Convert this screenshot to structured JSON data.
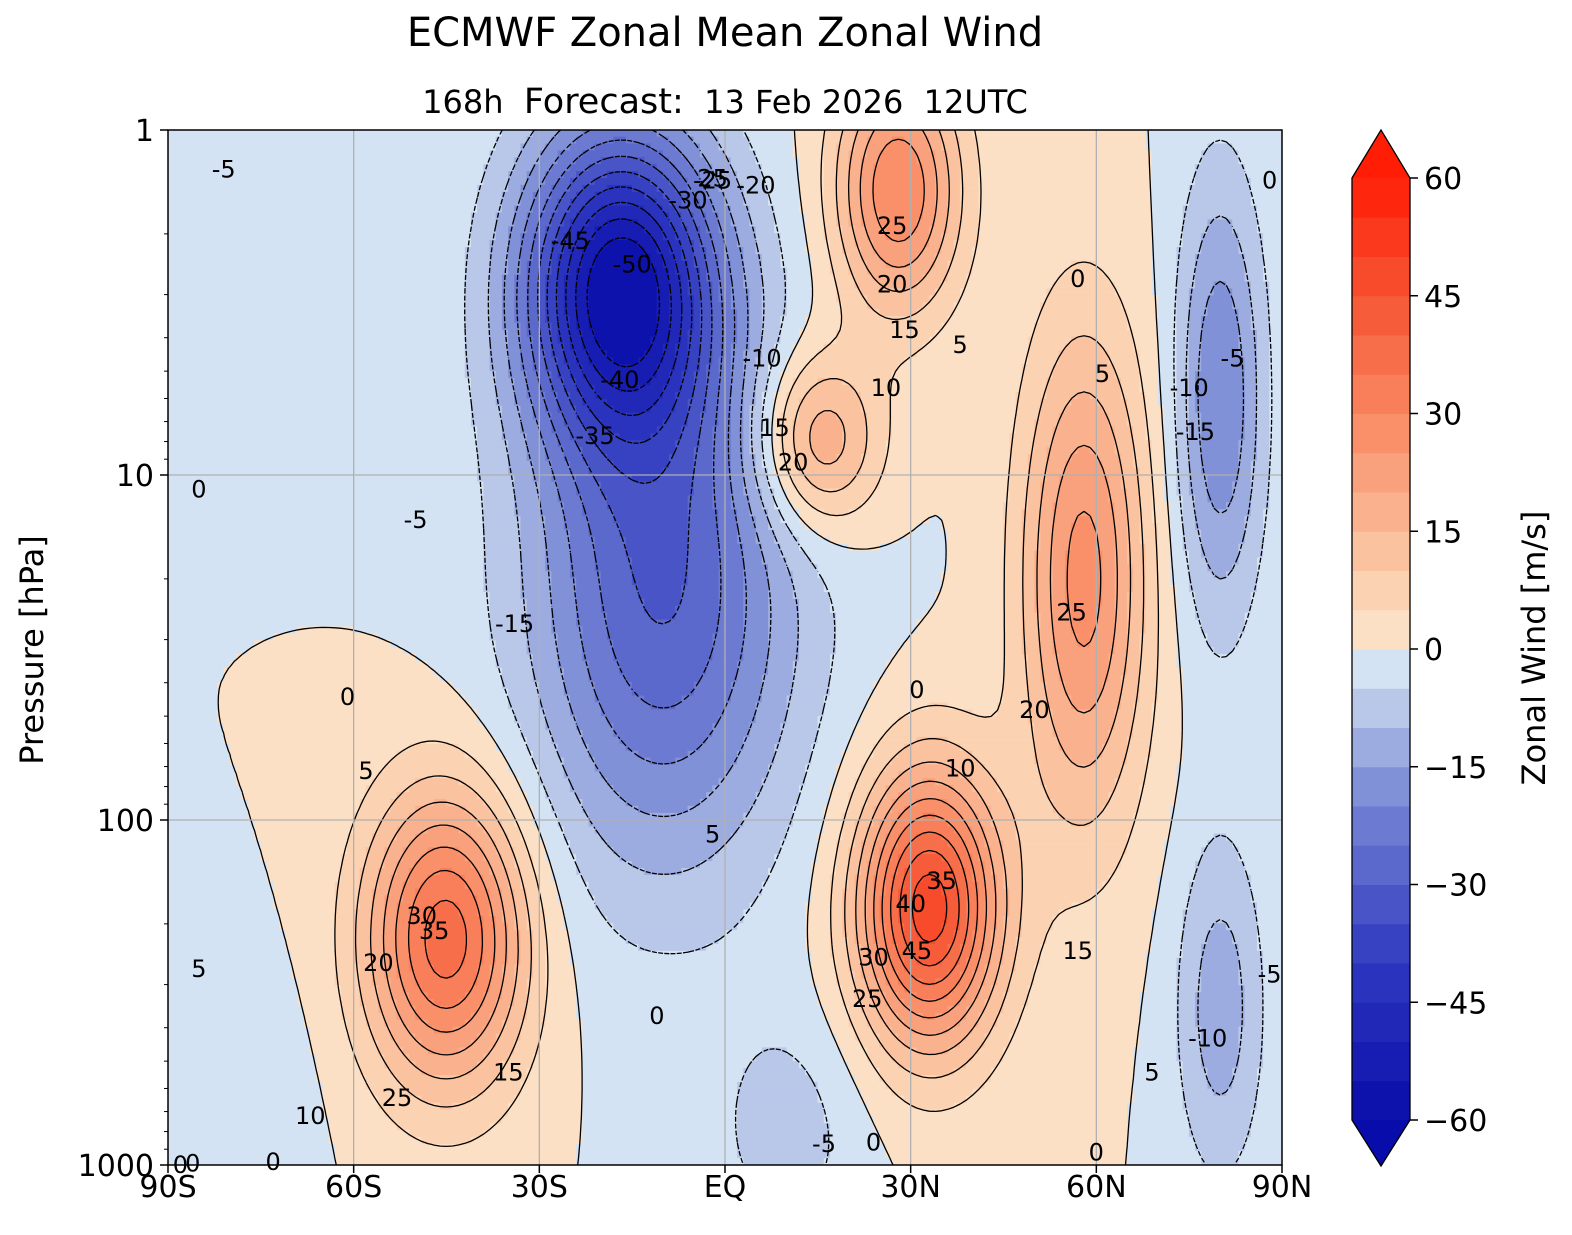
{
  "chart_data": {
    "type": "contour",
    "title": "ECMWF Zonal Mean Zonal Wind",
    "subtitle": {
      "lead": "168h",
      "label": "Forecast:",
      "date": "13 Feb 2026",
      "time": "12UTC"
    },
    "xlabel": "",
    "ylabel": "Pressure [hPa]",
    "x_range": [
      -90,
      90
    ],
    "y_range_hpa": [
      1000,
      1
    ],
    "y_scale": "log",
    "x_ticks": [
      {
        "value": -90,
        "label": "90S"
      },
      {
        "value": -60,
        "label": "60S"
      },
      {
        "value": -30,
        "label": "30S"
      },
      {
        "value": 0,
        "label": "EQ"
      },
      {
        "value": 30,
        "label": "30N"
      },
      {
        "value": 60,
        "label": "60N"
      },
      {
        "value": 90,
        "label": "90N"
      }
    ],
    "y_ticks": [
      {
        "value": 1,
        "label": "1"
      },
      {
        "value": 10,
        "label": "10"
      },
      {
        "value": 100,
        "label": "100"
      },
      {
        "value": 1000,
        "label": "1000"
      }
    ],
    "grid": true,
    "colorbar": {
      "label": "Zonal Wind [m/s]",
      "range": [
        -60,
        60
      ],
      "step": 5,
      "extend": "both",
      "ticks": [
        {
          "value": 60,
          "label": "60"
        },
        {
          "value": 45,
          "label": "45"
        },
        {
          "value": 30,
          "label": "30"
        },
        {
          "value": 15,
          "label": "15"
        },
        {
          "value": 0,
          "label": "0"
        },
        {
          "value": -15,
          "label": "−15"
        },
        {
          "value": -30,
          "label": "−30"
        },
        {
          "value": -45,
          "label": "−45"
        },
        {
          "value": -60,
          "label": "−60"
        }
      ]
    },
    "features": [
      {
        "name": "SH stratospheric easterly jet",
        "lat": -17,
        "p": 2.8,
        "value": -55,
        "sd_lat": 11,
        "sd_logp": 0.32,
        "tilt": 0.0095
      },
      {
        "name": "Easterly tongue lower strat",
        "lat": -10,
        "p": 22,
        "value": -30,
        "sd_lat": 15,
        "sd_logp": 0.55,
        "tilt": 0.0
      },
      {
        "name": "NH subtropical westerly upper",
        "lat": 28,
        "p": 1.5,
        "value": 30,
        "sd_lat": 7,
        "sd_logp": 0.25,
        "tilt": 0.0
      },
      {
        "name": "Westerly max 15N 8hPa",
        "lat": 15,
        "p": 8,
        "value": 22,
        "sd_lat": 7,
        "sd_logp": 0.18,
        "tilt": 0.0
      },
      {
        "name": "SH tropospheric jet",
        "lat": -45,
        "p": 220,
        "value": 38,
        "sd_lat": 9,
        "sd_logp": 0.3,
        "tilt": 0.0
      },
      {
        "name": "NH subtropical jet",
        "lat": 33,
        "p": 180,
        "value": 48,
        "sd_lat": 8,
        "sd_logp": 0.28,
        "tilt": 0.0
      },
      {
        "name": "NH polar night jet",
        "lat": 58,
        "p": 20,
        "value": 27,
        "sd_lat": 7,
        "sd_logp": 0.5,
        "tilt": 0.0
      },
      {
        "name": "Arctic easterlies upper",
        "lat": 80,
        "p": 6,
        "value": -20,
        "sd_lat": 5,
        "sd_logp": 0.45,
        "tilt": 0.0
      },
      {
        "name": "Arctic easterlies lower",
        "lat": 80,
        "p": 350,
        "value": -13,
        "sd_lat": 5,
        "sd_logp": 0.35,
        "tilt": 0.0
      },
      {
        "name": "Tropical surface easterlies",
        "lat": 10,
        "p": 800,
        "value": -7,
        "sd_lat": 9,
        "sd_logp": 0.25,
        "tilt": 0.0
      },
      {
        "name": "Antarctic surface easterlies",
        "lat": -75,
        "p": 800,
        "value": -4,
        "sd_lat": 6,
        "sd_logp": 0.3,
        "tilt": 0.0
      }
    ],
    "contour_labels": [
      {
        "text": "-5",
        "lat": -81,
        "p": 1.3
      },
      {
        "text": "-45",
        "lat": -25,
        "p": 2.1
      },
      {
        "text": "-50",
        "lat": -15,
        "p": 2.45
      },
      {
        "text": "-30",
        "lat": -6,
        "p": 1.6
      },
      {
        "text": "-25",
        "lat": -2,
        "p": 1.4
      },
      {
        "text": "-20",
        "lat": 5,
        "p": 1.45
      },
      {
        "text": "-40",
        "lat": -17,
        "p": 5.3
      },
      {
        "text": "-10",
        "lat": 6,
        "p": 4.6
      },
      {
        "text": "-35",
        "lat": -21,
        "p": 7.7
      },
      {
        "text": "-5",
        "lat": -50,
        "p": 13.5
      },
      {
        "text": "-15",
        "lat": -34,
        "p": 27
      },
      {
        "text": "25",
        "lat": -2,
        "p": 1.38
      },
      {
        "text": "25",
        "lat": 27,
        "p": 1.9
      },
      {
        "text": "20",
        "lat": 27,
        "p": 2.8
      },
      {
        "text": "15",
        "lat": 29,
        "p": 3.8
      },
      {
        "text": "5",
        "lat": 38,
        "p": 4.2
      },
      {
        "text": "0",
        "lat": 57,
        "p": 2.7
      },
      {
        "text": "10",
        "lat": 26,
        "p": 5.6
      },
      {
        "text": "5",
        "lat": 61,
        "p": 5.1
      },
      {
        "text": "-5",
        "lat": 82,
        "p": 4.6
      },
      {
        "text": "-10",
        "lat": 75,
        "p": 5.6
      },
      {
        "text": "-15",
        "lat": 76,
        "p": 7.5
      },
      {
        "text": "15",
        "lat": 8,
        "p": 7.3
      },
      {
        "text": "20",
        "lat": 11,
        "p": 9.2
      },
      {
        "text": "0",
        "lat": -85,
        "p": 11
      },
      {
        "text": "0",
        "lat": 88,
        "p": 1.4
      },
      {
        "text": "25",
        "lat": 56,
        "p": 25
      },
      {
        "text": "0",
        "lat": 31,
        "p": 42
      },
      {
        "text": "20",
        "lat": 50,
        "p": 48
      },
      {
        "text": "10",
        "lat": 38,
        "p": 71
      },
      {
        "text": "0",
        "lat": -61,
        "p": 44
      },
      {
        "text": "5",
        "lat": -58,
        "p": 72
      },
      {
        "text": "5",
        "lat": -2,
        "p": 110
      },
      {
        "text": "35",
        "lat": 35,
        "p": 150
      },
      {
        "text": "40",
        "lat": 30,
        "p": 175
      },
      {
        "text": "45",
        "lat": 31,
        "p": 240
      },
      {
        "text": "30",
        "lat": 24,
        "p": 250
      },
      {
        "text": "25",
        "lat": 23,
        "p": 330
      },
      {
        "text": "15",
        "lat": 57,
        "p": 240
      },
      {
        "text": "30",
        "lat": -49,
        "p": 190
      },
      {
        "text": "35",
        "lat": -47,
        "p": 210
      },
      {
        "text": "20",
        "lat": -56,
        "p": 260
      },
      {
        "text": "5",
        "lat": -85,
        "p": 270
      },
      {
        "text": "0",
        "lat": -11,
        "p": 370
      },
      {
        "text": "15",
        "lat": -35,
        "p": 540
      },
      {
        "text": "25",
        "lat": -53,
        "p": 640
      },
      {
        "text": "10",
        "lat": -67,
        "p": 720
      },
      {
        "text": "5",
        "lat": 69,
        "p": 540
      },
      {
        "text": "-10",
        "lat": 78,
        "p": 430
      },
      {
        "text": "-5",
        "lat": 88,
        "p": 280
      },
      {
        "text": "0",
        "lat": -73,
        "p": 980
      },
      {
        "text": "0",
        "lat": -86,
        "p": 990
      },
      {
        "text": "0",
        "lat": -88,
        "p": 1000
      },
      {
        "text": "-5",
        "lat": 16,
        "p": 870
      },
      {
        "text": "0",
        "lat": 24,
        "p": 860
      },
      {
        "text": "0",
        "lat": 60,
        "p": 920
      }
    ]
  }
}
